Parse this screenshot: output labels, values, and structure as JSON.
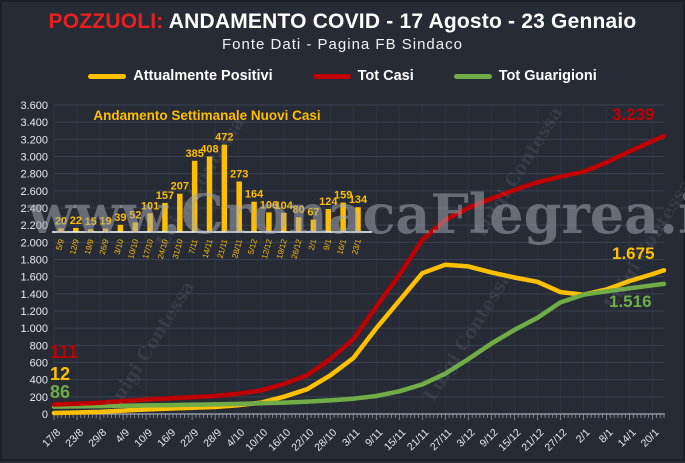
{
  "header": {
    "title_city": "POZZUOLI:",
    "title_rest": "ANDAMENTO COVID - 17 Agosto - 23 Gennaio",
    "subtitle": "Fonte Dati - Pagina FB Sindaco"
  },
  "colors": {
    "background": "#262b36",
    "title_city_red": "#e82020",
    "text": "#ffffff",
    "axis_text": "#e8eaef",
    "axis_line": "#a6acb8",
    "grid_horizontal": "#3a4150",
    "grid_vertical": "#2e3442",
    "yellow": "#ffc000",
    "red": "#c00000",
    "green": "#70ad47",
    "inset_gold": "#ffbf00",
    "inset_baseline": "#ffffff"
  },
  "legend": {
    "items": [
      {
        "label": "Attualmente Positivi",
        "color": "#ffc000"
      },
      {
        "label": "Tot Casi",
        "color": "#c00000"
      },
      {
        "label": "Tot Guarigioni",
        "color": "#70ad47"
      }
    ]
  },
  "watermarks": {
    "main": "www.CronacaFlegrea.it",
    "diagonal": "Luigi Contessa"
  },
  "chart_data": {
    "type": "line",
    "title": "POZZUOLI: ANDAMENTO COVID - 17 Agosto - 23 Gennaio",
    "xlabel": "",
    "ylabel": "",
    "ylim": [
      0,
      3600
    ],
    "y_tick_step": 200,
    "y_tick_labels": [
      "0",
      "200",
      "400",
      "600",
      "800",
      "1.000",
      "1.200",
      "1.400",
      "1.600",
      "1.800",
      "2.000",
      "2.200",
      "2.400",
      "2.600",
      "2.800",
      "3.000",
      "3.200",
      "3.400",
      "3.600"
    ],
    "x_tick_labels": [
      "17/8",
      "23/8",
      "29/8",
      "4/9",
      "10/9",
      "16/9",
      "22/9",
      "28/9",
      "4/10",
      "10/10",
      "16/10",
      "22/10",
      "28/10",
      "3/11",
      "9/11",
      "15/11",
      "21/11",
      "27/11",
      "3/12",
      "9/12",
      "15/12",
      "21/12",
      "27/12",
      "2/1",
      "8/1",
      "14/1",
      "20/1"
    ],
    "x_tick_days": [
      0,
      6,
      12,
      18,
      24,
      30,
      36,
      42,
      48,
      54,
      60,
      66,
      72,
      78,
      84,
      90,
      96,
      102,
      108,
      114,
      120,
      126,
      132,
      138,
      144,
      150,
      156
    ],
    "end_day": 159,
    "days": [
      0,
      6,
      12,
      18,
      24,
      30,
      36,
      42,
      48,
      54,
      60,
      66,
      72,
      78,
      84,
      90,
      96,
      102,
      108,
      114,
      120,
      126,
      132,
      138,
      144,
      150,
      156,
      159
    ],
    "series": [
      {
        "name": "Attualmente Positivi",
        "color": "#ffc000",
        "start_label": "12",
        "end_label": "1.675",
        "values": [
          12,
          18,
          25,
          40,
          53,
          63,
          73,
          82,
          102,
          133,
          201,
          289,
          450,
          650,
          1000,
          1320,
          1640,
          1740,
          1720,
          1650,
          1590,
          1540,
          1420,
          1390,
          1450,
          1550,
          1630,
          1675
        ]
      },
      {
        "name": "Tot Casi",
        "color": "#c00000",
        "start_label": "111",
        "end_label": "3.239",
        "values": [
          111,
          120,
          131,
          150,
          168,
          182,
          196,
          210,
          236,
          275,
          352,
          452,
          640,
          870,
          1250,
          1620,
          2028,
          2260,
          2400,
          2510,
          2610,
          2700,
          2765,
          2822,
          2930,
          3060,
          3180,
          3239
        ]
      },
      {
        "name": "Tot Guarigioni",
        "color": "#70ad47",
        "start_label": "86",
        "end_label": "1.516",
        "values": [
          86,
          88,
          92,
          96,
          100,
          104,
          108,
          112,
          118,
          125,
          133,
          144,
          158,
          178,
          210,
          265,
          345,
          470,
          640,
          820,
          980,
          1120,
          1300,
          1390,
          1430,
          1465,
          1500,
          1516
        ]
      }
    ],
    "inset": {
      "type": "bar",
      "title": "Andamento Settimanale Nuovi Casi",
      "categories": [
        "5/9",
        "12/9",
        "19/9",
        "26/9",
        "3/10",
        "10/10",
        "17/10",
        "24/10",
        "31/10",
        "7/11",
        "14/11",
        "21/11",
        "28/11",
        "5/12",
        "12/12",
        "19/12",
        "26/12",
        "2/1",
        "9/1",
        "16/1",
        "23/1"
      ],
      "values": [
        20,
        22,
        15,
        19,
        39,
        52,
        101,
        157,
        207,
        385,
        408,
        472,
        273,
        164,
        106,
        104,
        80,
        67,
        124,
        159,
        134
      ]
    }
  }
}
